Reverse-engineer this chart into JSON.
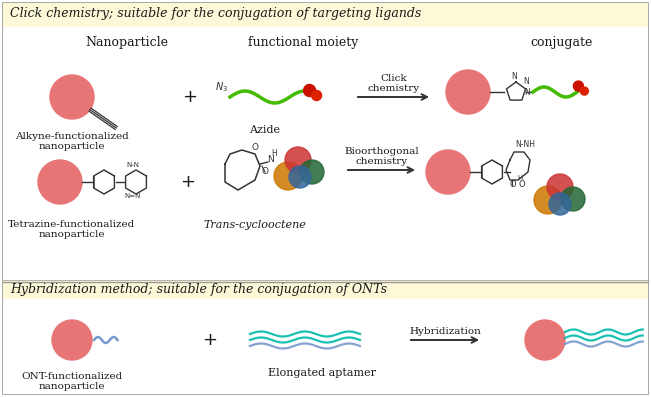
{
  "title_click": "Click chemistry; suitable for the conjugation of targeting ligands",
  "title_hybrid": "Hybridization method; suitable for the conjugation of ONTs",
  "col_headers": [
    "Nanoparticle",
    "functional moiety",
    "conjugate"
  ],
  "row1_labels": [
    "Alkyne-functionalized\nnanoparticle",
    "Azide"
  ],
  "row2_labels": [
    "Tetrazine-functionalized\nnanoparticle",
    "Trans-cyclooctene"
  ],
  "row3_labels": [
    "ONT-functionalized\nnanoparticle",
    "Elongated aptamer"
  ],
  "arrow_labels": [
    "Click\nchemistry",
    "Bioorthogonal\nchemistry",
    "Hybridization"
  ],
  "bg_color": "#ffffff",
  "section_yellow": "#fdf9d8",
  "section_white": "#ffffff",
  "border_color": "#bbbbbb",
  "np_color": "#e87575",
  "text_color": "#1a1a1a",
  "green_color": "#44bb00",
  "red_dot_color": "#cc1100",
  "teal_color": "#00bbaa",
  "blue_color": "#7799cc"
}
